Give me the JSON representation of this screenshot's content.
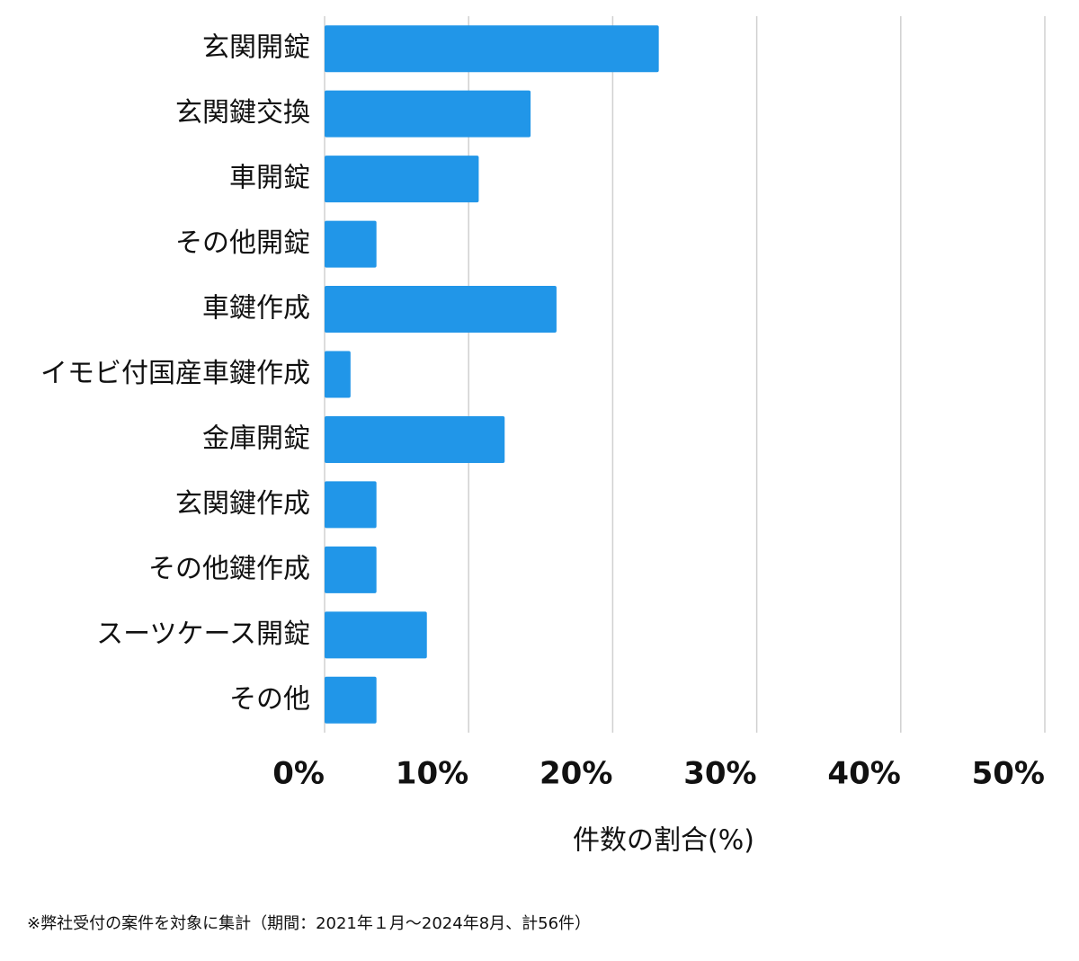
{
  "chart_data": {
    "type": "bar",
    "orientation": "horizontal",
    "categories": [
      "玄関開錠",
      "玄関鍵交換",
      "車開錠",
      "その他開錠",
      "車鍵作成",
      "イモビ付国産車鍵作成",
      "金庫開錠",
      "玄関鍵作成",
      "その他鍵作成",
      "スーツケース開錠",
      "その他"
    ],
    "values": [
      23.2,
      14.3,
      10.7,
      3.6,
      16.1,
      1.8,
      12.5,
      3.6,
      3.6,
      7.1,
      3.6
    ],
    "color": "#2196e8",
    "xlim": [
      0,
      50
    ],
    "xticks": [
      {
        "value": 0,
        "label": "0%"
      },
      {
        "value": 10,
        "label": "10%"
      },
      {
        "value": 20,
        "label": "20%"
      },
      {
        "value": 30,
        "label": "30%"
      },
      {
        "value": 40,
        "label": "40%"
      },
      {
        "value": 50,
        "label": "50%"
      }
    ],
    "grid": true,
    "x_label": "件数の割合(%)",
    "footnote": "※弊社受付の案件を対象に集計（期間：2021年１月〜2024年8月、計56件）"
  }
}
